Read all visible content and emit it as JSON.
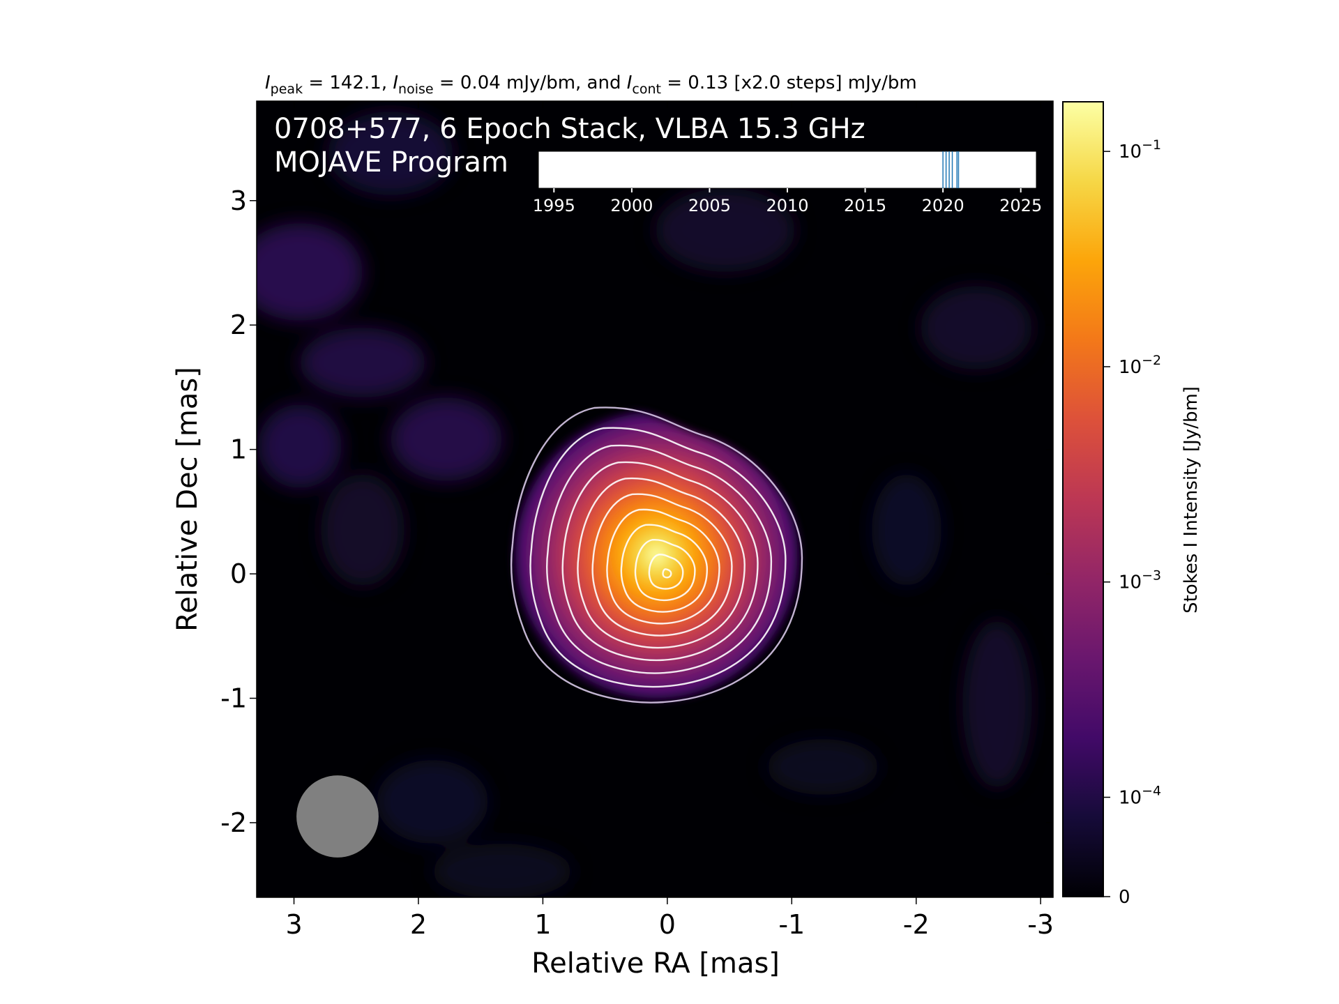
{
  "chart_data": {
    "type": "heatmap",
    "subtitle": {
      "peak_sub": "peak",
      "peak_value": " = 142.1, ",
      "noise_sub": "noise",
      "noise_value": " = 0.04 mJy/bm, and ",
      "cont_sub": "cont",
      "cont_value": " = 0.13 [x2.0 steps] mJy/bm",
      "symbol": "I"
    },
    "panel_title_line1": "0708+577, 6 Epoch Stack, VLBA 15.3 GHz",
    "panel_title_line2": "MOJAVE Program",
    "xlabel": "Relative RA [mas]",
    "ylabel": "Relative Dec [mas]",
    "xlim": [
      3.3,
      -3.1
    ],
    "ylim": [
      -2.6,
      3.8
    ],
    "xticks": [
      3,
      2,
      1,
      0,
      -1,
      -2,
      -3
    ],
    "yticks": [
      3,
      2,
      1,
      0,
      -1,
      -2
    ],
    "peak_intensity_mjy_per_beam": 142.1,
    "noise_mjy_per_beam": 0.04,
    "lowest_contour_mjy_per_beam": 0.13,
    "contour_step_factor": 2.0,
    "contour_levels_mjy_per_beam": [
      0.13,
      0.26,
      0.52,
      1.04,
      2.08,
      4.16,
      8.32,
      16.64,
      33.28,
      66.56,
      133.12
    ],
    "source_center_mas": [
      0,
      0
    ],
    "beam": {
      "ra_mas": 2.65,
      "dec_mas": -1.95,
      "diameter_mas": 0.66,
      "color": "#808080"
    },
    "colormap": "inferno",
    "colorbar": {
      "label": "Stokes I Intensity [Jy/bm]",
      "scale": "log",
      "ticks": [
        {
          "value": 0,
          "label": "0"
        },
        {
          "value": 0.0001,
          "base": "10",
          "exp": "−4"
        },
        {
          "value": 0.001,
          "base": "10",
          "exp": "−3"
        },
        {
          "value": 0.01,
          "base": "10",
          "exp": "−2"
        },
        {
          "value": 0.1,
          "base": "10",
          "exp": "−1"
        }
      ]
    },
    "epoch_inset": {
      "xlim": [
        1994,
        2026
      ],
      "xticks": [
        1995,
        2000,
        2005,
        2010,
        2015,
        2020,
        2025
      ],
      "epochs": [
        2020.0,
        2020.2,
        2020.4,
        2020.6,
        2020.9,
        2021.0
      ],
      "line_color": "#1f77b4"
    }
  }
}
